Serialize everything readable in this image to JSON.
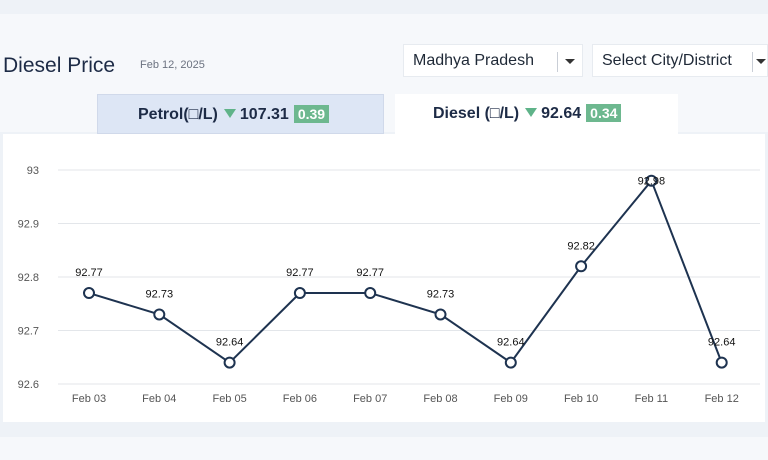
{
  "header": {
    "title": "Diesel Price",
    "date": "Feb 12, 2025"
  },
  "filters": {
    "state": "Madhya Pradesh",
    "city": "Select City/District"
  },
  "tabs": [
    {
      "label": "Petrol(□/L)",
      "price": "107.31",
      "change": "0.39",
      "direction": "down"
    },
    {
      "label": "Diesel (□/L)",
      "price": "92.64",
      "change": "0.34",
      "direction": "down",
      "active": true
    }
  ],
  "colors": {
    "line": "#1e3350",
    "change_badge": "#6db88f",
    "down_arrow": "#5fb389"
  },
  "chart_data": {
    "type": "line",
    "x": [
      "Feb 03",
      "Feb 04",
      "Feb 05",
      "Feb 06",
      "Feb 07",
      "Feb 08",
      "Feb 09",
      "Feb 10",
      "Feb 11",
      "Feb 12"
    ],
    "y": [
      92.77,
      92.73,
      92.64,
      92.77,
      92.77,
      92.73,
      92.64,
      92.82,
      92.98,
      92.64
    ],
    "y_ticks": [
      "93",
      "92.9",
      "92.8",
      "92.7",
      "92.6"
    ],
    "ylim": [
      92.6,
      93
    ],
    "grid": true,
    "point_labels": true
  }
}
